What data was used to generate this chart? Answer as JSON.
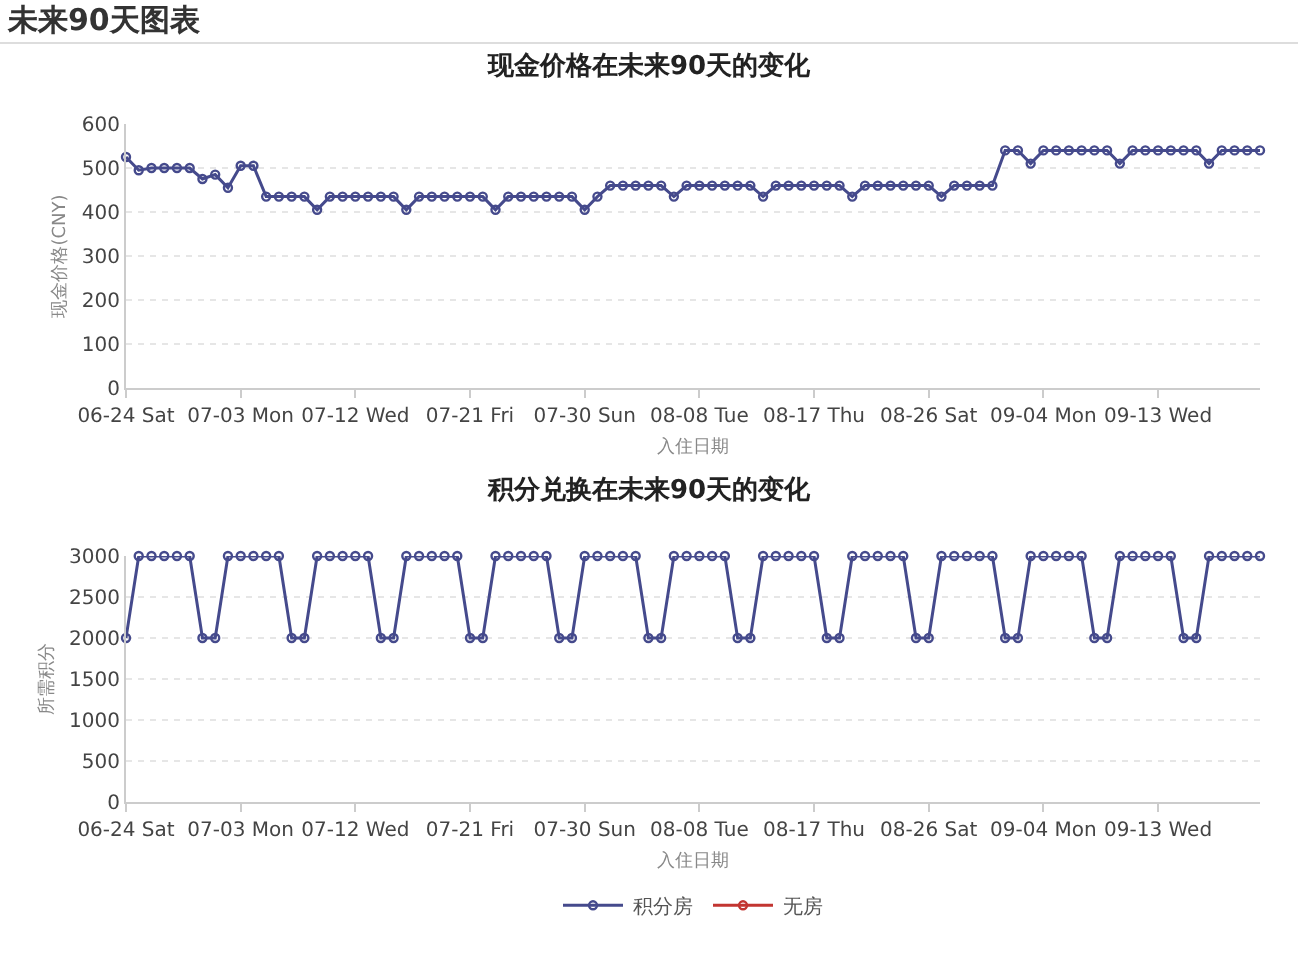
{
  "chart_data": [
    {
      "type": "line",
      "title": "现金价格在未来90天的变化",
      "xlabel": "入住日期",
      "ylabel": "现金价格(CNY)",
      "annotations": [
        "未来90天图表"
      ],
      "categories": [
        "06-24 Sat",
        null,
        null,
        null,
        null,
        null,
        null,
        null,
        null,
        "07-03 Mon",
        null,
        null,
        null,
        null,
        null,
        null,
        null,
        null,
        "07-12 Wed",
        null,
        null,
        null,
        null,
        null,
        null,
        null,
        null,
        "07-21 Fri",
        null,
        null,
        null,
        null,
        null,
        null,
        null,
        null,
        "07-30 Sun",
        null,
        null,
        null,
        null,
        null,
        null,
        null,
        null,
        "08-08 Tue",
        null,
        null,
        null,
        null,
        null,
        null,
        null,
        null,
        "08-17 Thu",
        null,
        null,
        null,
        null,
        null,
        null,
        null,
        null,
        "08-26 Sat",
        null,
        null,
        null,
        null,
        null,
        null,
        null,
        null,
        "09-04 Mon",
        null,
        null,
        null,
        null,
        null,
        null,
        null,
        null,
        "09-13 Wed",
        null,
        null,
        null,
        null,
        null,
        null,
        null,
        null
      ],
      "series": [
        {
          "color": "#454a8c",
          "values": [
            525,
            495,
            500,
            500,
            500,
            500,
            475,
            485,
            455,
            505,
            505,
            435,
            435,
            435,
            435,
            405,
            435,
            435,
            435,
            435,
            435,
            435,
            405,
            435,
            435,
            435,
            435,
            435,
            435,
            405,
            435,
            435,
            435,
            435,
            435,
            435,
            405,
            435,
            460,
            460,
            460,
            460,
            460,
            435,
            460,
            460,
            460,
            460,
            460,
            460,
            435,
            460,
            460,
            460,
            460,
            460,
            460,
            435,
            460,
            460,
            460,
            460,
            460,
            460,
            435,
            460,
            460,
            460,
            460,
            540,
            540,
            510,
            540,
            540,
            540,
            540,
            540,
            540,
            510,
            540,
            540,
            540,
            540,
            540,
            540,
            510,
            540,
            540,
            540,
            540
          ]
        }
      ],
      "ylim": [
        0,
        600
      ],
      "yticks": [
        0,
        100,
        200,
        300,
        400,
        500,
        600
      ],
      "grid": "y",
      "marker": "circle",
      "line_style": "solid"
    },
    {
      "type": "line",
      "title": "积分兑换在未来90天的变化",
      "xlabel": "入住日期",
      "ylabel": "所需积分",
      "categories": [
        "06-24 Sat",
        null,
        null,
        null,
        null,
        null,
        null,
        null,
        null,
        "07-03 Mon",
        null,
        null,
        null,
        null,
        null,
        null,
        null,
        null,
        "07-12 Wed",
        null,
        null,
        null,
        null,
        null,
        null,
        null,
        null,
        "07-21 Fri",
        null,
        null,
        null,
        null,
        null,
        null,
        null,
        null,
        "07-30 Sun",
        null,
        null,
        null,
        null,
        null,
        null,
        null,
        null,
        "08-08 Tue",
        null,
        null,
        null,
        null,
        null,
        null,
        null,
        null,
        "08-17 Thu",
        null,
        null,
        null,
        null,
        null,
        null,
        null,
        null,
        "08-26 Sat",
        null,
        null,
        null,
        null,
        null,
        null,
        null,
        null,
        "09-04 Mon",
        null,
        null,
        null,
        null,
        null,
        null,
        null,
        null,
        "09-13 Wed",
        null,
        null,
        null,
        null,
        null,
        null,
        null,
        null
      ],
      "series": [
        {
          "name": "积分房",
          "color": "#454a8c",
          "values": [
            2000,
            3000,
            3000,
            3000,
            3000,
            3000,
            2000,
            2000,
            3000,
            3000,
            3000,
            3000,
            3000,
            2000,
            2000,
            3000,
            3000,
            3000,
            3000,
            3000,
            2000,
            2000,
            3000,
            3000,
            3000,
            3000,
            3000,
            2000,
            2000,
            3000,
            3000,
            3000,
            3000,
            3000,
            2000,
            2000,
            3000,
            3000,
            3000,
            3000,
            3000,
            2000,
            2000,
            3000,
            3000,
            3000,
            3000,
            3000,
            2000,
            2000,
            3000,
            3000,
            3000,
            3000,
            3000,
            2000,
            2000,
            3000,
            3000,
            3000,
            3000,
            3000,
            2000,
            2000,
            3000,
            3000,
            3000,
            3000,
            3000,
            2000,
            2000,
            3000,
            3000,
            3000,
            3000,
            3000,
            2000,
            2000,
            3000,
            3000,
            3000,
            3000,
            3000,
            2000,
            2000,
            3000,
            3000,
            3000,
            3000,
            3000
          ]
        },
        {
          "name": "无房",
          "color": "#c23531",
          "values": [
            null,
            null,
            null,
            null,
            null,
            null,
            null,
            null,
            null,
            null,
            null,
            null,
            null,
            null,
            null,
            null,
            null,
            null,
            null,
            null,
            null,
            null,
            null,
            null,
            null,
            null,
            null,
            null,
            null,
            null,
            null,
            null,
            null,
            null,
            null,
            null,
            null,
            null,
            null,
            null,
            null,
            null,
            null,
            null,
            null,
            null,
            null,
            null,
            null,
            null,
            null,
            null,
            null,
            null,
            null,
            null,
            null,
            null,
            null,
            null,
            null,
            null,
            null,
            null,
            null,
            null,
            null,
            null,
            null,
            null,
            null,
            null,
            null,
            null,
            null,
            null,
            null,
            null,
            null,
            null,
            null,
            null,
            null,
            null,
            null,
            null,
            null,
            null,
            null,
            null
          ]
        }
      ],
      "ylim": [
        0,
        3000
      ],
      "yticks": [
        0,
        500,
        1000,
        1500,
        2000,
        2500,
        3000
      ],
      "grid": "y",
      "marker": "circle",
      "line_style": "solid",
      "legend": "bottom"
    }
  ]
}
